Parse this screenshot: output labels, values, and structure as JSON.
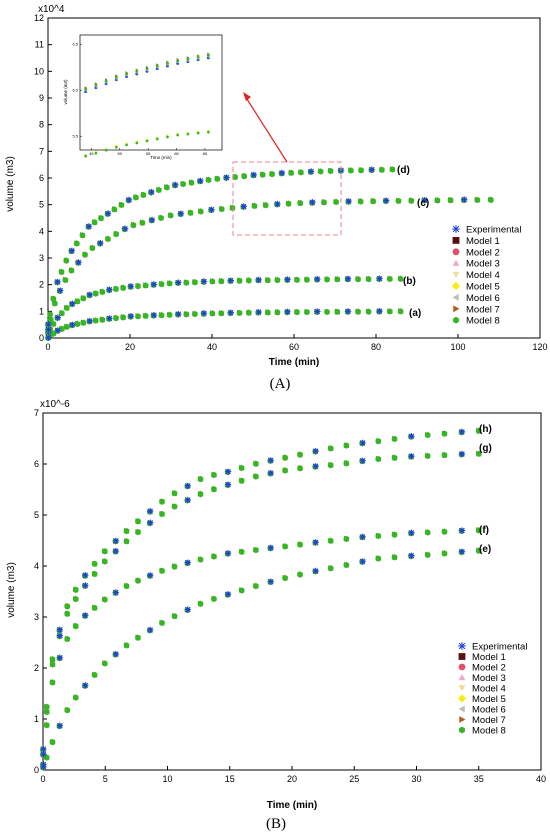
{
  "panels": [
    {
      "label": "(A)",
      "xlabel": "Time (min)",
      "ylabel": "volume (m3)",
      "exponent": "x10^4",
      "xlim": [
        0,
        120
      ],
      "ylim": [
        0,
        12
      ],
      "xticks": [
        0,
        20,
        40,
        60,
        80,
        100,
        120
      ],
      "yticks": [
        0,
        1,
        2,
        3,
        4,
        5,
        6,
        7,
        8,
        9,
        10,
        11,
        12
      ],
      "curve_labels": [
        "(a)",
        "(b)",
        "(c)",
        "(d)"
      ]
    },
    {
      "label": "(B)",
      "xlabel": "Time (min)",
      "ylabel": "volume (m3)",
      "exponent": "x10^-6",
      "xlim": [
        0,
        40
      ],
      "ylim": [
        0,
        7
      ],
      "xticks": [
        0,
        5,
        10,
        15,
        20,
        25,
        30,
        35,
        40
      ],
      "yticks": [
        0,
        1,
        2,
        3,
        4,
        5,
        6,
        7
      ],
      "curve_labels": [
        "(h)",
        "(g)",
        "(f)",
        "(e)"
      ]
    }
  ],
  "inset": {
    "xlabel": "Time (min)",
    "ylabel": "volume (m3)",
    "xlim": [
      43,
      68
    ],
    "ylim": [
      5.35,
      6.6
    ],
    "xticks": [
      45,
      50,
      55,
      60,
      65
    ],
    "yticks": [
      5.5,
      6.0,
      6.5
    ]
  },
  "legend": [
    "Experimental",
    "Model 1",
    "Model 2",
    "Model 3",
    "Model 4",
    "Model 5",
    "Model 6",
    "Model 7",
    "Model 8"
  ],
  "legend_colors": [
    "#1f3fd8",
    "#5a1010",
    "#e0506a",
    "#f2a6cc",
    "#f2dc96",
    "#f5ee10",
    "#bbbbbb",
    "#b8581a",
    "#33b824"
  ],
  "colors": {
    "model8": "#33b824",
    "experimental": "#1f3fd8",
    "model7": "#b8581a",
    "zoom_box": "#f08080",
    "arrow": "#e02020"
  },
  "chart_data": [
    {
      "type": "scatter",
      "xlabel": "Time (min)",
      "ylabel": "volume (m3) x10^4",
      "xlim": [
        0,
        120
      ],
      "ylim": [
        0,
        12
      ],
      "series": [
        {
          "name": "(a)",
          "x": [
            0,
            2,
            5,
            10,
            15,
            20,
            30,
            40,
            50,
            60,
            70,
            80,
            86
          ],
          "y": [
            0,
            0.25,
            0.45,
            0.62,
            0.72,
            0.8,
            0.87,
            0.92,
            0.95,
            0.97,
            0.98,
            0.99,
            1.0
          ]
        },
        {
          "name": "(b)",
          "x": [
            0,
            2,
            5,
            10,
            15,
            20,
            30,
            40,
            50,
            60,
            70,
            80,
            86
          ],
          "y": [
            0.2,
            0.7,
            1.2,
            1.6,
            1.8,
            1.92,
            2.05,
            2.12,
            2.16,
            2.18,
            2.2,
            2.21,
            2.22
          ]
        },
        {
          "name": "(c)",
          "x": [
            0,
            2,
            5,
            10,
            20,
            30,
            40,
            50,
            60,
            70,
            80,
            90,
            100,
            108
          ],
          "y": [
            0.3,
            1.5,
            2.4,
            3.3,
            4.2,
            4.6,
            4.8,
            4.95,
            5.05,
            5.1,
            5.13,
            5.15,
            5.17,
            5.18
          ]
        },
        {
          "name": "(d)",
          "x": [
            0,
            2,
            5,
            10,
            20,
            30,
            40,
            50,
            60,
            70,
            80,
            84
          ],
          "y": [
            0.5,
            2.0,
            3.1,
            4.2,
            5.2,
            5.7,
            5.95,
            6.1,
            6.2,
            6.27,
            6.3,
            6.32
          ]
        }
      ]
    },
    {
      "type": "scatter",
      "xlabel": "Time (min)",
      "ylabel": "volume (m3) x10^-6",
      "xlim": [
        0,
        40
      ],
      "ylim": [
        0,
        7
      ],
      "series": [
        {
          "name": "(e)",
          "x": [
            0,
            0.5,
            1,
            2,
            3,
            5,
            7,
            10,
            13,
            15,
            20,
            25,
            30,
            35
          ],
          "y": [
            0.1,
            1.4,
            2.0,
            2.6,
            2.95,
            3.35,
            3.65,
            3.95,
            4.15,
            4.25,
            4.4,
            4.55,
            4.65,
            4.7
          ]
        },
        {
          "name": "(f)",
          "x": [
            0,
            1,
            2,
            3,
            5,
            7,
            10,
            13,
            15,
            17,
            20,
            22,
            25,
            27,
            30,
            35
          ],
          "y": [
            0.05,
            0.7,
            1.2,
            1.55,
            2.1,
            2.5,
            2.95,
            3.3,
            3.45,
            3.6,
            3.8,
            3.9,
            4.05,
            4.15,
            4.2,
            4.3
          ]
        },
        {
          "name": "(g)",
          "x": [
            0,
            0.5,
            1,
            2,
            3,
            5,
            7,
            10,
            13,
            15,
            17,
            20,
            24,
            27,
            30,
            35
          ],
          "y": [
            0.3,
            1.7,
            2.4,
            3.1,
            3.5,
            4.1,
            4.55,
            5.1,
            5.45,
            5.6,
            5.75,
            5.9,
            6.0,
            6.1,
            6.15,
            6.2
          ]
        },
        {
          "name": "(h)",
          "x": [
            0,
            0.5,
            1,
            2,
            3,
            5,
            7,
            10,
            13,
            15,
            17,
            20,
            24,
            27,
            30,
            35
          ],
          "y": [
            0.4,
            1.8,
            2.5,
            3.25,
            3.7,
            4.3,
            4.75,
            5.35,
            5.75,
            5.85,
            6.0,
            6.15,
            6.35,
            6.45,
            6.55,
            6.65
          ]
        }
      ]
    }
  ]
}
